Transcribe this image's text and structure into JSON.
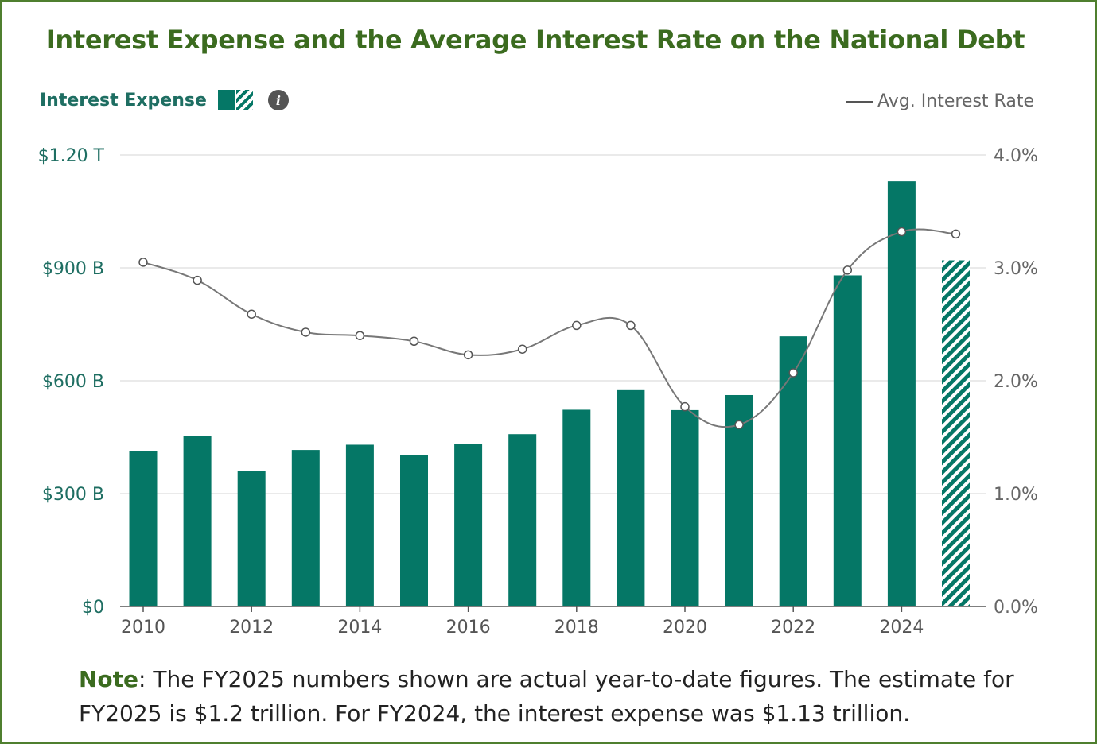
{
  "title": "Interest Expense and the Average Interest Rate on the National Debt",
  "legend": {
    "left_label": "Interest Expense",
    "right_label": "Avg. Interest Rate",
    "info_icon": "info-icon"
  },
  "note": {
    "label": "Note",
    "text": ": The FY2025 numbers shown are actual year-to-date figures. The estimate for FY2025 is $1.2 trillion. For FY2024, the interest expense was $1.13 trillion."
  },
  "colors": {
    "bar": "#057766",
    "line": "#777777",
    "title": "#3b6b1f",
    "border": "#4f7f2f"
  },
  "chart_data": {
    "type": "bar",
    "x": [
      2010,
      2011,
      2012,
      2013,
      2014,
      2015,
      2016,
      2017,
      2018,
      2019,
      2020,
      2021,
      2022,
      2023,
      2024,
      2025
    ],
    "series": [
      {
        "name": "Interest Expense",
        "type": "bar",
        "axis": "left",
        "unit": "billions USD",
        "values": [
          414,
          454,
          360,
          416,
          430,
          402,
          432,
          458,
          523,
          575,
          522,
          562,
          718,
          880,
          1130,
          920
        ],
        "hatched_from": 2025
      },
      {
        "name": "Avg. Interest Rate",
        "type": "line",
        "axis": "right",
        "unit": "percent",
        "values": [
          3.05,
          2.89,
          2.59,
          2.43,
          2.4,
          2.35,
          2.23,
          2.28,
          2.49,
          2.49,
          1.77,
          1.61,
          2.07,
          2.98,
          3.32,
          3.3
        ]
      }
    ],
    "left_axis": {
      "ticks": [
        "$0",
        "$300 B",
        "$600 B",
        "$900 B",
        "$1.20 T"
      ],
      "tick_values": [
        0,
        300,
        600,
        900,
        1200
      ],
      "range": [
        0,
        1200
      ]
    },
    "right_axis": {
      "ticks": [
        "0.0%",
        "1.0%",
        "2.0%",
        "3.0%",
        "4.0%"
      ],
      "tick_values": [
        0,
        1,
        2,
        3,
        4
      ],
      "range": [
        0,
        4
      ]
    },
    "x_ticks": [
      "2010",
      "2012",
      "2014",
      "2016",
      "2018",
      "2020",
      "2022",
      "2024"
    ],
    "grid": true
  }
}
